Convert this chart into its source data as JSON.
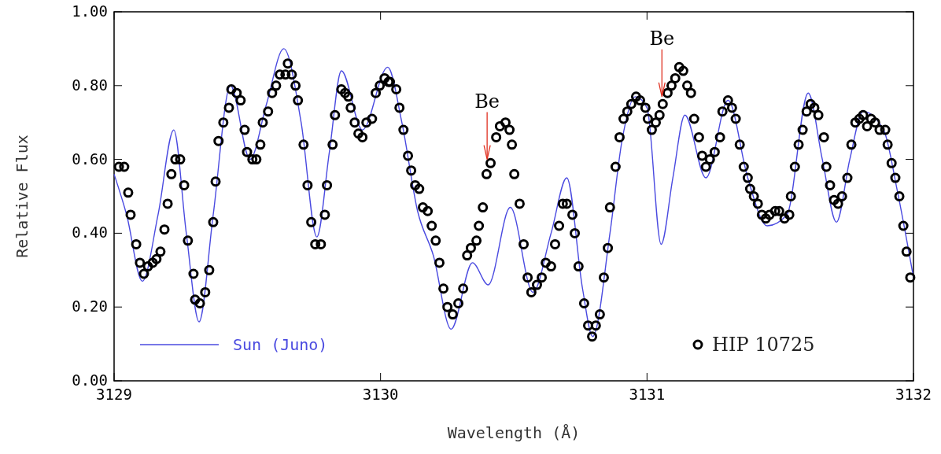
{
  "chart_data": {
    "type": "line",
    "xlabel": "Wavelength (Å)",
    "ylabel": "Relative Flux",
    "xlim": [
      3129,
      3132
    ],
    "ylim": [
      0,
      1
    ],
    "xticks": [
      3129,
      3130,
      3131,
      3132
    ],
    "yticks": [
      {
        "value": 0,
        "label": "0.00"
      },
      {
        "value": 0.2,
        "label": "0.20"
      },
      {
        "value": 0.4,
        "label": "0.40"
      },
      {
        "value": 0.6,
        "label": "0.60"
      },
      {
        "value": 0.8,
        "label": "0.80"
      },
      {
        "value": 1,
        "label": "1.00"
      }
    ],
    "grid": false,
    "legend": "bottom",
    "line_style": "solid",
    "annotations": [
      {
        "text": "Be",
        "x": 3130.4,
        "y": 0.6
      },
      {
        "text": "Be",
        "x": 3131.056,
        "y": 0.77
      }
    ],
    "series": [
      {
        "name": "Sun (Juno)",
        "color": "#4a4ae0",
        "x": [
          3129.0,
          3129.047,
          3129.106,
          3129.165,
          3129.224,
          3129.271,
          3129.319,
          3129.372,
          3129.437,
          3129.51,
          3129.572,
          3129.637,
          3129.702,
          3129.761,
          3129.808,
          3129.853,
          3129.932,
          3130.027,
          3130.08,
          3130.139,
          3130.198,
          3130.265,
          3130.345,
          3130.404,
          3130.487,
          3130.572,
          3130.64,
          3130.699,
          3130.758,
          3130.796,
          3130.861,
          3130.906,
          3130.956,
          3131.0,
          3131.053,
          3131.097,
          3131.142,
          3131.221,
          3131.304,
          3131.378,
          3131.451,
          3131.525,
          3131.605,
          3131.658,
          3131.711,
          3131.761,
          3131.811,
          3131.888,
          3131.938,
          3132.0
        ],
        "values": [
          0.56,
          0.45,
          0.27,
          0.45,
          0.68,
          0.4,
          0.16,
          0.45,
          0.8,
          0.6,
          0.75,
          0.9,
          0.7,
          0.39,
          0.62,
          0.84,
          0.68,
          0.85,
          0.7,
          0.46,
          0.34,
          0.14,
          0.32,
          0.26,
          0.47,
          0.24,
          0.4,
          0.55,
          0.25,
          0.12,
          0.4,
          0.65,
          0.77,
          0.74,
          0.37,
          0.55,
          0.72,
          0.55,
          0.76,
          0.55,
          0.42,
          0.45,
          0.78,
          0.6,
          0.43,
          0.6,
          0.73,
          0.68,
          0.52,
          0.28
        ]
      },
      {
        "name": "HIP 10725",
        "type": "scatter",
        "marker": "circle",
        "color": "#000000",
        "x": [
          3129.018,
          3129.038,
          3129.053,
          3129.062,
          3129.083,
          3129.097,
          3129.112,
          3129.127,
          3129.145,
          3129.159,
          3129.174,
          3129.189,
          3129.201,
          3129.215,
          3129.23,
          3129.248,
          3129.263,
          3129.277,
          3129.298,
          3129.304,
          3129.322,
          3129.342,
          3129.357,
          3129.372,
          3129.381,
          3129.392,
          3129.41,
          3129.431,
          3129.44,
          3129.46,
          3129.475,
          3129.49,
          3129.499,
          3129.519,
          3129.534,
          3129.549,
          3129.558,
          3129.578,
          3129.593,
          3129.608,
          3129.622,
          3129.643,
          3129.652,
          3129.667,
          3129.681,
          3129.69,
          3129.711,
          3129.726,
          3129.74,
          3129.755,
          3129.776,
          3129.791,
          3129.799,
          3129.82,
          3129.829,
          3129.853,
          3129.867,
          3129.879,
          3129.888,
          3129.903,
          3129.917,
          3129.932,
          3129.947,
          3129.968,
          3129.982,
          3129.997,
          3130.015,
          3130.03,
          3130.035,
          3130.059,
          3130.071,
          3130.086,
          3130.103,
          3130.115,
          3130.13,
          3130.145,
          3130.159,
          3130.177,
          3130.192,
          3130.207,
          3130.221,
          3130.236,
          3130.251,
          3130.271,
          3130.292,
          3130.31,
          3130.325,
          3130.339,
          3130.36,
          3130.369,
          3130.384,
          3130.398,
          3130.413,
          3130.434,
          3130.448,
          3130.469,
          3130.484,
          3130.493,
          3130.502,
          3130.522,
          3130.537,
          3130.552,
          3130.566,
          3130.587,
          3130.605,
          3130.62,
          3130.64,
          3130.655,
          3130.67,
          3130.684,
          3130.699,
          3130.72,
          3130.729,
          3130.743,
          3130.764,
          3130.779,
          3130.794,
          3130.808,
          3130.823,
          3130.838,
          3130.853,
          3130.861,
          3130.882,
          3130.897,
          3130.912,
          3130.926,
          3130.941,
          3130.959,
          3130.974,
          3130.994,
          3131.003,
          3131.018,
          3131.033,
          3131.047,
          3131.059,
          3131.077,
          3131.092,
          3131.106,
          3131.121,
          3131.136,
          3131.151,
          3131.165,
          3131.177,
          3131.195,
          3131.207,
          3131.221,
          3131.236,
          3131.254,
          3131.274,
          3131.283,
          3131.304,
          3131.319,
          3131.333,
          3131.348,
          3131.363,
          3131.378,
          3131.387,
          3131.401,
          3131.416,
          3131.431,
          3131.446,
          3131.46,
          3131.481,
          3131.496,
          3131.516,
          3131.534,
          3131.54,
          3131.555,
          3131.569,
          3131.584,
          3131.599,
          3131.614,
          3131.628,
          3131.643,
          3131.664,
          3131.673,
          3131.687,
          3131.702,
          3131.717,
          3131.732,
          3131.752,
          3131.767,
          3131.782,
          3131.797,
          3131.811,
          3131.826,
          3131.841,
          3131.856,
          3131.873,
          3131.894,
          3131.903,
          3131.918,
          3131.932,
          3131.947,
          3131.962,
          3131.974,
          3131.988
        ],
        "values": [
          0.58,
          0.58,
          0.51,
          0.45,
          0.37,
          0.32,
          0.29,
          0.31,
          0.32,
          0.33,
          0.35,
          0.41,
          0.48,
          0.56,
          0.6,
          0.6,
          0.53,
          0.38,
          0.29,
          0.22,
          0.21,
          0.24,
          0.3,
          0.43,
          0.54,
          0.65,
          0.7,
          0.74,
          0.79,
          0.78,
          0.76,
          0.68,
          0.62,
          0.6,
          0.6,
          0.64,
          0.7,
          0.73,
          0.78,
          0.8,
          0.83,
          0.83,
          0.86,
          0.83,
          0.8,
          0.76,
          0.64,
          0.53,
          0.43,
          0.37,
          0.37,
          0.45,
          0.53,
          0.64,
          0.72,
          0.79,
          0.78,
          0.77,
          0.74,
          0.7,
          0.67,
          0.66,
          0.7,
          0.71,
          0.78,
          0.8,
          0.82,
          0.81,
          0.81,
          0.79,
          0.74,
          0.68,
          0.61,
          0.57,
          0.53,
          0.52,
          0.47,
          0.46,
          0.42,
          0.38,
          0.32,
          0.25,
          0.2,
          0.18,
          0.21,
          0.25,
          0.34,
          0.36,
          0.38,
          0.42,
          0.47,
          0.56,
          0.59,
          0.66,
          0.69,
          0.7,
          0.68,
          0.64,
          0.56,
          0.48,
          0.37,
          0.28,
          0.24,
          0.26,
          0.28,
          0.32,
          0.31,
          0.37,
          0.42,
          0.48,
          0.48,
          0.45,
          0.4,
          0.31,
          0.21,
          0.15,
          0.12,
          0.15,
          0.18,
          0.28,
          0.36,
          0.47,
          0.58,
          0.66,
          0.71,
          0.73,
          0.75,
          0.77,
          0.76,
          0.74,
          0.71,
          0.68,
          0.7,
          0.72,
          0.75,
          0.78,
          0.8,
          0.82,
          0.85,
          0.84,
          0.8,
          0.78,
          0.71,
          0.66,
          0.61,
          0.58,
          0.6,
          0.62,
          0.66,
          0.73,
          0.76,
          0.74,
          0.71,
          0.64,
          0.58,
          0.55,
          0.52,
          0.5,
          0.48,
          0.45,
          0.44,
          0.45,
          0.46,
          0.46,
          0.44,
          0.45,
          0.5,
          0.58,
          0.64,
          0.68,
          0.73,
          0.75,
          0.74,
          0.72,
          0.66,
          0.58,
          0.53,
          0.49,
          0.48,
          0.5,
          0.55,
          0.64,
          0.7,
          0.71,
          0.72,
          0.69,
          0.71,
          0.7,
          0.68,
          0.68,
          0.64,
          0.59,
          0.55,
          0.5,
          0.42,
          0.35,
          0.28
        ]
      }
    ]
  }
}
